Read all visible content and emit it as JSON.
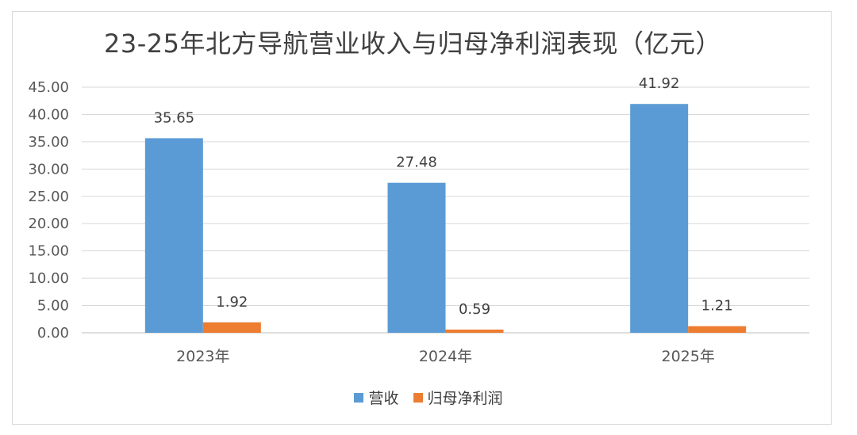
{
  "chart_data": {
    "type": "bar",
    "title": "23-25年北方导航营业收入与归母净利润表现（亿元）",
    "categories": [
      "2023年",
      "2024年",
      "2025年"
    ],
    "series": [
      {
        "name": "营收",
        "values": [
          35.65,
          27.48,
          41.92
        ],
        "labels": [
          "35.65",
          "27.48",
          "41.92"
        ],
        "color": "#5b9bd5"
      },
      {
        "name": "归母净利润",
        "values": [
          1.92,
          0.59,
          1.21
        ],
        "labels": [
          "1.92",
          "0.59",
          "1.21"
        ],
        "color": "#ed7d31"
      }
    ],
    "ylim": [
      0,
      45
    ],
    "yticks": [
      "0.00",
      "5.00",
      "10.00",
      "15.00",
      "20.00",
      "25.00",
      "30.00",
      "35.00",
      "40.00",
      "45.00"
    ],
    "grid": true,
    "legend": "bottom"
  }
}
